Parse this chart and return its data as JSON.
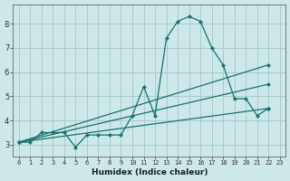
{
  "xlabel": "Humidex (Indice chaleur)",
  "bg_color": "#cce8e8",
  "grid_color": "#aacccc",
  "line_color": "#1a7070",
  "xlim": [
    -0.5,
    23.5
  ],
  "ylim": [
    2.5,
    8.8
  ],
  "yticks": [
    3,
    4,
    5,
    6,
    7,
    8
  ],
  "xtick_labels": [
    "0",
    "1",
    "2",
    "3",
    "4",
    "5",
    "6",
    "7",
    "8",
    "9",
    "10",
    "11",
    "12",
    "13",
    "14",
    "15",
    "16",
    "17",
    "18",
    "19",
    "20",
    "21",
    "22",
    "23"
  ],
  "series": [
    {
      "x": [
        0,
        1,
        2,
        3,
        4,
        5,
        6,
        7,
        8,
        9,
        10,
        11,
        12,
        13,
        14,
        15,
        16,
        17,
        18,
        19,
        20,
        21,
        22
      ],
      "y": [
        3.1,
        3.1,
        3.5,
        3.5,
        3.5,
        2.9,
        3.4,
        3.4,
        3.4,
        3.4,
        4.2,
        5.4,
        4.2,
        7.4,
        8.1,
        8.3,
        8.1,
        7.0,
        6.3,
        4.9,
        4.9,
        4.2,
        4.5
      ]
    },
    {
      "x": [
        0,
        22
      ],
      "y": [
        3.1,
        6.3
      ]
    },
    {
      "x": [
        0,
        22
      ],
      "y": [
        3.1,
        5.5
      ]
    },
    {
      "x": [
        0,
        22
      ],
      "y": [
        3.1,
        4.5
      ]
    }
  ]
}
